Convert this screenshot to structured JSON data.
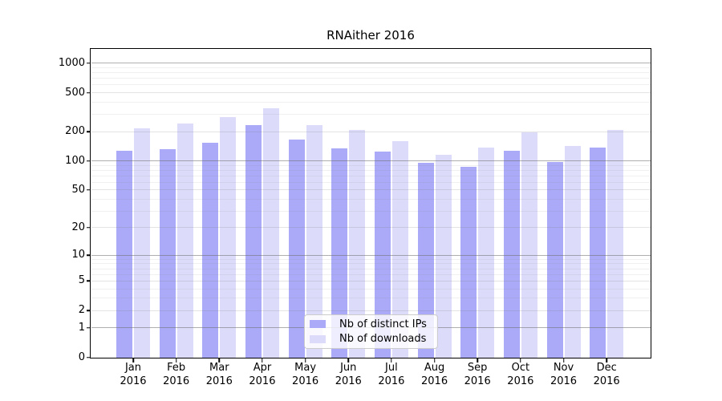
{
  "chart_data": {
    "type": "bar",
    "title": "RNAither 2016",
    "categories": [
      "Jan",
      "Feb",
      "Mar",
      "Apr",
      "May",
      "Jun",
      "Jul",
      "Aug",
      "Sep",
      "Oct",
      "Nov",
      "Dec"
    ],
    "x_tick_second_line": "2016",
    "series": [
      {
        "name": "Nb of distinct IPs",
        "color": "#aaaaf8",
        "values": [
          126,
          132,
          155,
          234,
          165,
          134,
          124,
          95,
          87,
          127,
          98,
          137
        ]
      },
      {
        "name": "Nb of downloads",
        "color": "#dcdcfa",
        "values": [
          217,
          244,
          283,
          346,
          231,
          209,
          160,
          115,
          137,
          196,
          143,
          207
        ]
      }
    ],
    "y_axis": {
      "scale": "log1p",
      "ylim": [
        0,
        1400
      ],
      "tick_values": [
        0,
        1,
        2,
        5,
        10,
        20,
        50,
        100,
        200,
        500,
        1000
      ],
      "tick_labels": [
        "0",
        "1",
        "2",
        "5",
        "10",
        "20",
        "50",
        "100",
        "200",
        "500",
        "1000"
      ],
      "major_grid_values": [
        1,
        10,
        100,
        1000
      ],
      "labeled_grid_values": [
        2,
        5,
        20,
        50,
        200,
        500
      ],
      "minor_grid_values": [
        3,
        4,
        6,
        7,
        8,
        9,
        30,
        40,
        60,
        70,
        80,
        90,
        300,
        400,
        600,
        700,
        800,
        900
      ]
    },
    "legend": {
      "items": [
        "Nb of distinct IPs",
        "Nb of downloads"
      ],
      "position": "bottom-center"
    },
    "grid": true
  },
  "colors": {
    "distinct_ips_bar": "#aaaaf8",
    "downloads_bar": "#dcdcfa",
    "spine": "#000000",
    "background": "#ffffff"
  }
}
